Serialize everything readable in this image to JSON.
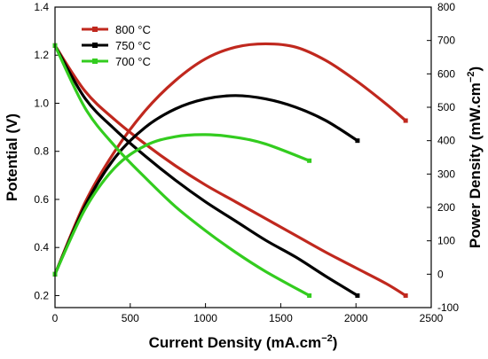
{
  "chart_data": {
    "type": "line",
    "xlabel": "Current Density (mA.cm",
    "xlabel_sup": "−2",
    "xlabel_end": ")",
    "ylabel_left": "Potential (V)",
    "ylabel_right": "Power Density (mW.cm",
    "ylabel_right_sup": "−2",
    "ylabel_right_end": ")",
    "xlim": [
      0,
      2500
    ],
    "ylim_left": [
      0.15,
      1.4
    ],
    "ylim_right": [
      -100,
      800
    ],
    "x_ticks": [
      "0",
      "500",
      "1000",
      "1500",
      "2000",
      "2500"
    ],
    "y_left_ticks": [
      "0.2",
      "0.4",
      "0.6",
      "0.8",
      "1.0",
      "1.2",
      "1.4"
    ],
    "y_right_ticks": [
      "-100",
      "0",
      "100",
      "200",
      "300",
      "400",
      "500",
      "600",
      "700",
      "800"
    ],
    "legend_position": "top-left",
    "series": [
      {
        "name": "800 °C",
        "color": "#c0281e",
        "marker": "square",
        "voltage": {
          "x": [
            0,
            200,
            400,
            600,
            800,
            1000,
            1200,
            1400,
            1600,
            1800,
            2000,
            2200,
            2330
          ],
          "y": [
            1.24,
            1.05,
            0.93,
            0.83,
            0.74,
            0.66,
            0.59,
            0.52,
            0.45,
            0.38,
            0.315,
            0.25,
            0.2
          ]
        },
        "power": {
          "x": [
            0,
            200,
            400,
            600,
            800,
            1000,
            1200,
            1400,
            1600,
            1800,
            2000,
            2200,
            2330
          ],
          "y": [
            0,
            215,
            370,
            490,
            580,
            645,
            680,
            690,
            680,
            640,
            580,
            510,
            460
          ]
        }
      },
      {
        "name": "750 °C",
        "color": "#000000",
        "marker": "square",
        "voltage": {
          "x": [
            0,
            200,
            400,
            600,
            800,
            1000,
            1200,
            1400,
            1600,
            1800,
            2010
          ],
          "y": [
            1.24,
            1.02,
            0.89,
            0.78,
            0.68,
            0.59,
            0.51,
            0.43,
            0.36,
            0.28,
            0.2
          ]
        },
        "power": {
          "x": [
            0,
            200,
            400,
            600,
            800,
            1000,
            1200,
            1400,
            1600,
            1800,
            2010
          ],
          "y": [
            0,
            205,
            350,
            440,
            495,
            525,
            535,
            525,
            500,
            460,
            400
          ]
        }
      },
      {
        "name": "700 °C",
        "color": "#33cc1f",
        "marker": "square",
        "voltage": {
          "x": [
            0,
            200,
            400,
            600,
            800,
            1000,
            1200,
            1400,
            1690
          ],
          "y": [
            1.24,
            0.98,
            0.82,
            0.69,
            0.57,
            0.47,
            0.38,
            0.3,
            0.2
          ]
        },
        "power": {
          "x": [
            0,
            200,
            400,
            600,
            800,
            1000,
            1200,
            1400,
            1690
          ],
          "y": [
            0,
            195,
            320,
            385,
            412,
            418,
            410,
            390,
            340
          ]
        }
      }
    ]
  }
}
